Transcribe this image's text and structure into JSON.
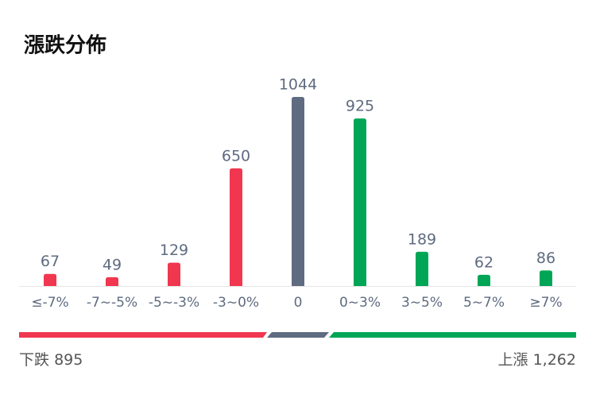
{
  "chart_data": {
    "type": "bar",
    "title": "漲跌分佈",
    "categories": [
      "≤-7%",
      "-7~-5%",
      "-5~-3%",
      "-3~0%",
      "0",
      "0~3%",
      "3~5%",
      "5~7%",
      "≥7%"
    ],
    "values": [
      67,
      49,
      129,
      650,
      1044,
      925,
      189,
      62,
      86
    ],
    "colors": [
      "#f0374f",
      "#f0374f",
      "#f0374f",
      "#f0374f",
      "#5f6b80",
      "#00a656",
      "#00a656",
      "#00a656",
      "#00a656"
    ],
    "summary": {
      "down_label": "下跌",
      "down_value": 895,
      "up_label": "上漲",
      "up_value": 1262,
      "up_value_label": "1,262"
    }
  }
}
